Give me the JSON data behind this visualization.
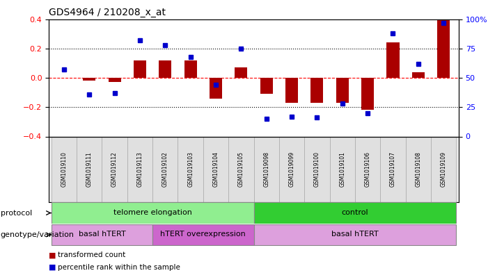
{
  "title": "GDS4964 / 210208_x_at",
  "samples": [
    "GSM1019110",
    "GSM1019111",
    "GSM1019112",
    "GSM1019113",
    "GSM1019102",
    "GSM1019103",
    "GSM1019104",
    "GSM1019105",
    "GSM1019098",
    "GSM1019099",
    "GSM1019100",
    "GSM1019101",
    "GSM1019106",
    "GSM1019107",
    "GSM1019108",
    "GSM1019109"
  ],
  "bar_values": [
    0.0,
    -0.02,
    -0.03,
    0.12,
    0.12,
    0.12,
    -0.14,
    0.07,
    -0.11,
    -0.17,
    -0.17,
    -0.17,
    -0.22,
    0.24,
    0.04,
    0.4
  ],
  "dot_values": [
    57,
    36,
    37,
    82,
    78,
    68,
    44,
    75,
    15,
    17,
    16,
    28,
    20,
    88,
    62,
    97
  ],
  "bar_color": "#AA0000",
  "dot_color": "#0000CC",
  "ylim_left": [
    -0.4,
    0.4
  ],
  "ylim_right": [
    0,
    100
  ],
  "yticks_left": [
    -0.4,
    -0.2,
    0.0,
    0.2,
    0.4
  ],
  "yticks_right": [
    0,
    25,
    50,
    75,
    100
  ],
  "protocol_groups": [
    {
      "label": "telomere elongation",
      "start": 0,
      "end": 8,
      "color": "#90EE90"
    },
    {
      "label": "control",
      "start": 8,
      "end": 16,
      "color": "#32CD32"
    }
  ],
  "genotype_groups": [
    {
      "label": "basal hTERT",
      "start": 0,
      "end": 4,
      "color": "#DDA0DD"
    },
    {
      "label": "hTERT overexpression",
      "start": 4,
      "end": 8,
      "color": "#CC66CC"
    },
    {
      "label": "basal hTERT",
      "start": 8,
      "end": 16,
      "color": "#DDA0DD"
    }
  ],
  "legend_items": [
    {
      "label": "transformed count",
      "color": "#AA0000"
    },
    {
      "label": "percentile rank within the sample",
      "color": "#0000CC"
    }
  ],
  "protocol_label": "protocol",
  "genotype_label": "genotype/variation",
  "background_color": "#FFFFFF",
  "plot_bg_color": "#FFFFFF"
}
